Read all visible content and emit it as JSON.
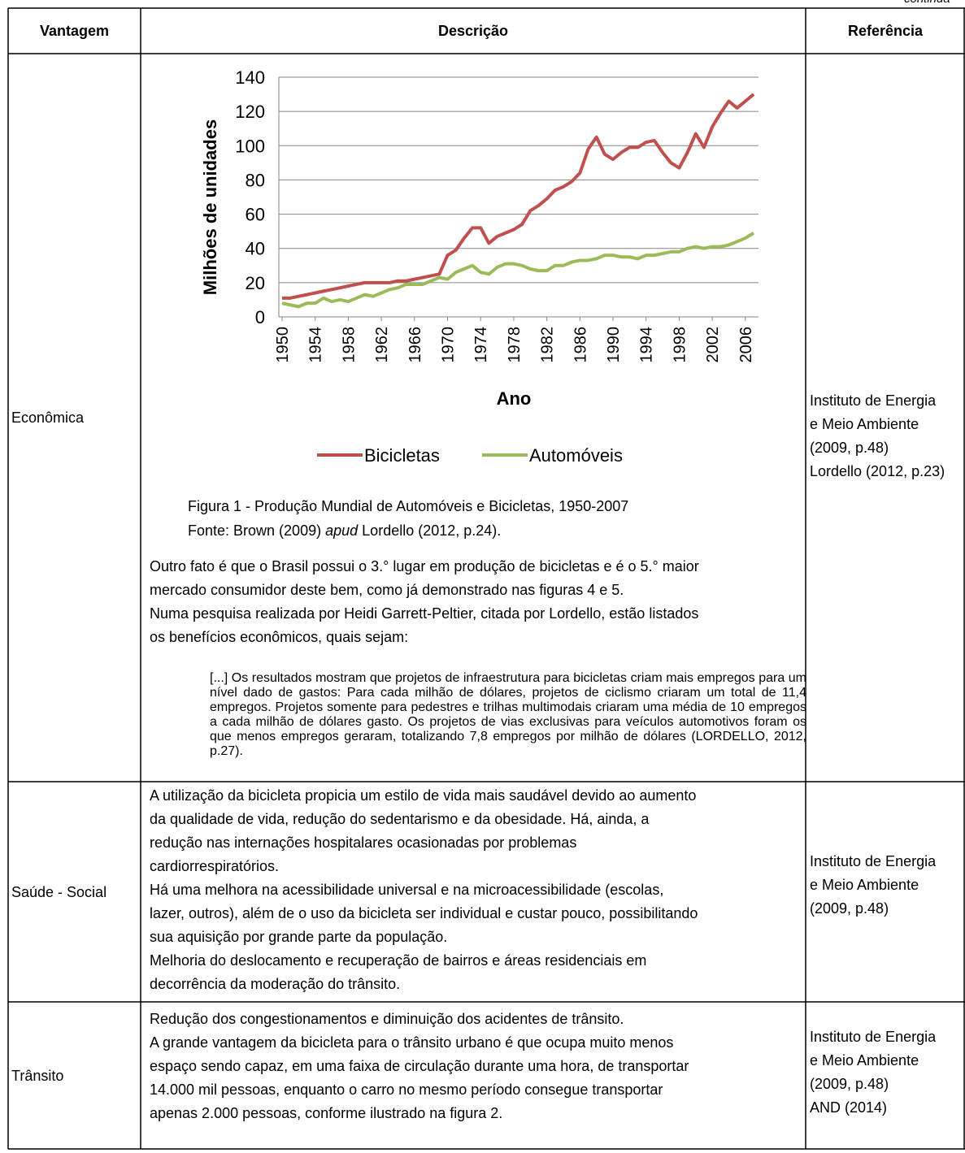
{
  "continuation_note": "continua",
  "table": {
    "headers": [
      "Vantagem",
      "Descrição",
      "Referência"
    ],
    "rows": [
      {
        "vantagem": "Econômica",
        "figure_caption": {
          "title": "Figura 1 - Produção Mundial de Automóveis e Bicicletas, 1950-2007",
          "source": [
            "Fonte: Brown (2009)",
            "apud",
            "Lordello (2012, p.24)."
          ]
        },
        "lines": [
          "Outro fato é que o Brasil possui o 3.° lugar em produção de bicicletas e é o 5.° maior",
          "mercado consumidor deste bem, como já demonstrado nas figuras 4 e 5.",
          "Numa pesquisa realizada por Heidi Garrett-Peltier, citada por Lordello, estão listados",
          "os benefícios econômicos, quais sejam:"
        ],
        "quote": "[...] Os resultados mostram que projetos de infraestrutura para bicicletas criam mais empregos para um nível dado de gastos: Para cada milhão de dólares, projetos de ciclismo criaram um total de 11,4 empregos. Projetos somente para pedestres e trilhas multimodais criaram uma média de 10 empregos a cada milhão de dólares gasto. Os projetos de vias exclusivas para veículos automotivos foram os que menos empregos geraram, totalizando 7,8 empregos por milhão de dólares (LORDELLO, 2012, p.27).",
        "referencia": [
          "Instituto de Energia",
          "e Meio Ambiente",
          "(2009, p.48)",
          "Lordello (2012, p.23)"
        ]
      },
      {
        "vantagem": "Saúde - Social",
        "lines": [
          "A utilização da bicicleta propicia um estilo de vida mais saudável devido ao aumento",
          "da qualidade de vida, redução do sedentarismo e da obesidade. Há, ainda, a",
          "redução nas internações hospitalares ocasionadas por problemas",
          "cardiorrespiratórios.",
          "Há uma melhora na acessibilidade universal e na microacessibilidade (escolas,",
          "lazer, outros), além de o uso da bicicleta ser individual e custar pouco, possibilitando",
          "sua aquisição por grande parte da população.",
          "Melhoria do deslocamento e recuperação de bairros e áreas residenciais em",
          "decorrência da moderação do trânsito."
        ],
        "referencia": [
          "Instituto de Energia",
          "e Meio Ambiente",
          "(2009, p.48)"
        ]
      },
      {
        "vantagem": "Trânsito",
        "lines": [
          "Redução dos congestionamentos e diminuição dos acidentes de trânsito.",
          "A grande vantagem da bicicleta para o trânsito urbano é que ocupa muito menos",
          "espaço sendo capaz, em uma faixa de circulação durante uma hora, de transportar",
          "14.000 mil pessoas, enquanto o carro no mesmo período consegue transportar",
          "apenas 2.000 pessoas, conforme ilustrado na figura 2."
        ],
        "referencia": [
          "Instituto de Energia",
          "e Meio Ambiente",
          "(2009, p.48)",
          "AND (2014)"
        ]
      }
    ]
  },
  "chart_data": {
    "type": "line",
    "xlabel": "Ano",
    "ylabel": "Milhões de unidades",
    "x": [
      1950,
      1951,
      1952,
      1953,
      1954,
      1955,
      1956,
      1957,
      1958,
      1959,
      1960,
      1961,
      1962,
      1963,
      1964,
      1965,
      1966,
      1967,
      1968,
      1969,
      1970,
      1971,
      1972,
      1973,
      1974,
      1975,
      1976,
      1977,
      1978,
      1979,
      1980,
      1981,
      1982,
      1983,
      1984,
      1985,
      1986,
      1987,
      1988,
      1989,
      1990,
      1991,
      1992,
      1993,
      1994,
      1995,
      1996,
      1997,
      1998,
      1999,
      2000,
      2001,
      2002,
      2003,
      2004,
      2005,
      2006,
      2007
    ],
    "series": [
      {
        "name": "Bicicletas",
        "color": "#c0504d",
        "values": [
          11,
          11,
          12,
          13,
          14,
          15,
          16,
          17,
          18,
          19,
          20,
          20,
          20,
          20,
          21,
          21,
          22,
          23,
          24,
          25,
          36,
          39,
          46,
          52,
          52,
          43,
          47,
          49,
          51,
          54,
          62,
          65,
          69,
          74,
          76,
          79,
          84,
          98,
          105,
          95,
          92,
          96,
          99,
          99,
          102,
          103,
          96,
          90,
          87,
          96,
          107,
          99,
          111,
          119,
          126,
          122,
          126,
          130
        ]
      },
      {
        "name": "Automóveis",
        "color": "#9bbb59",
        "values": [
          8,
          7,
          6,
          8,
          8,
          11,
          9,
          10,
          9,
          11,
          13,
          12,
          14,
          16,
          17,
          19,
          19,
          19,
          21,
          23,
          22,
          26,
          28,
          30,
          26,
          25,
          29,
          31,
          31,
          30,
          28,
          27,
          27,
          30,
          30,
          32,
          33,
          33,
          34,
          36,
          36,
          35,
          35,
          34,
          36,
          36,
          37,
          38,
          38,
          40,
          41,
          40,
          41,
          41,
          42,
          44,
          46,
          49
        ]
      }
    ],
    "xlim": [
      1950,
      2007
    ],
    "xticks": [
      1950,
      1954,
      1958,
      1962,
      1966,
      1970,
      1974,
      1978,
      1982,
      1986,
      1990,
      1994,
      1998,
      2002,
      2006
    ],
    "ylim": [
      0,
      140
    ],
    "yticks": [
      0,
      20,
      40,
      60,
      80,
      100,
      120,
      140
    ],
    "grid": true,
    "legend": "bottom"
  }
}
